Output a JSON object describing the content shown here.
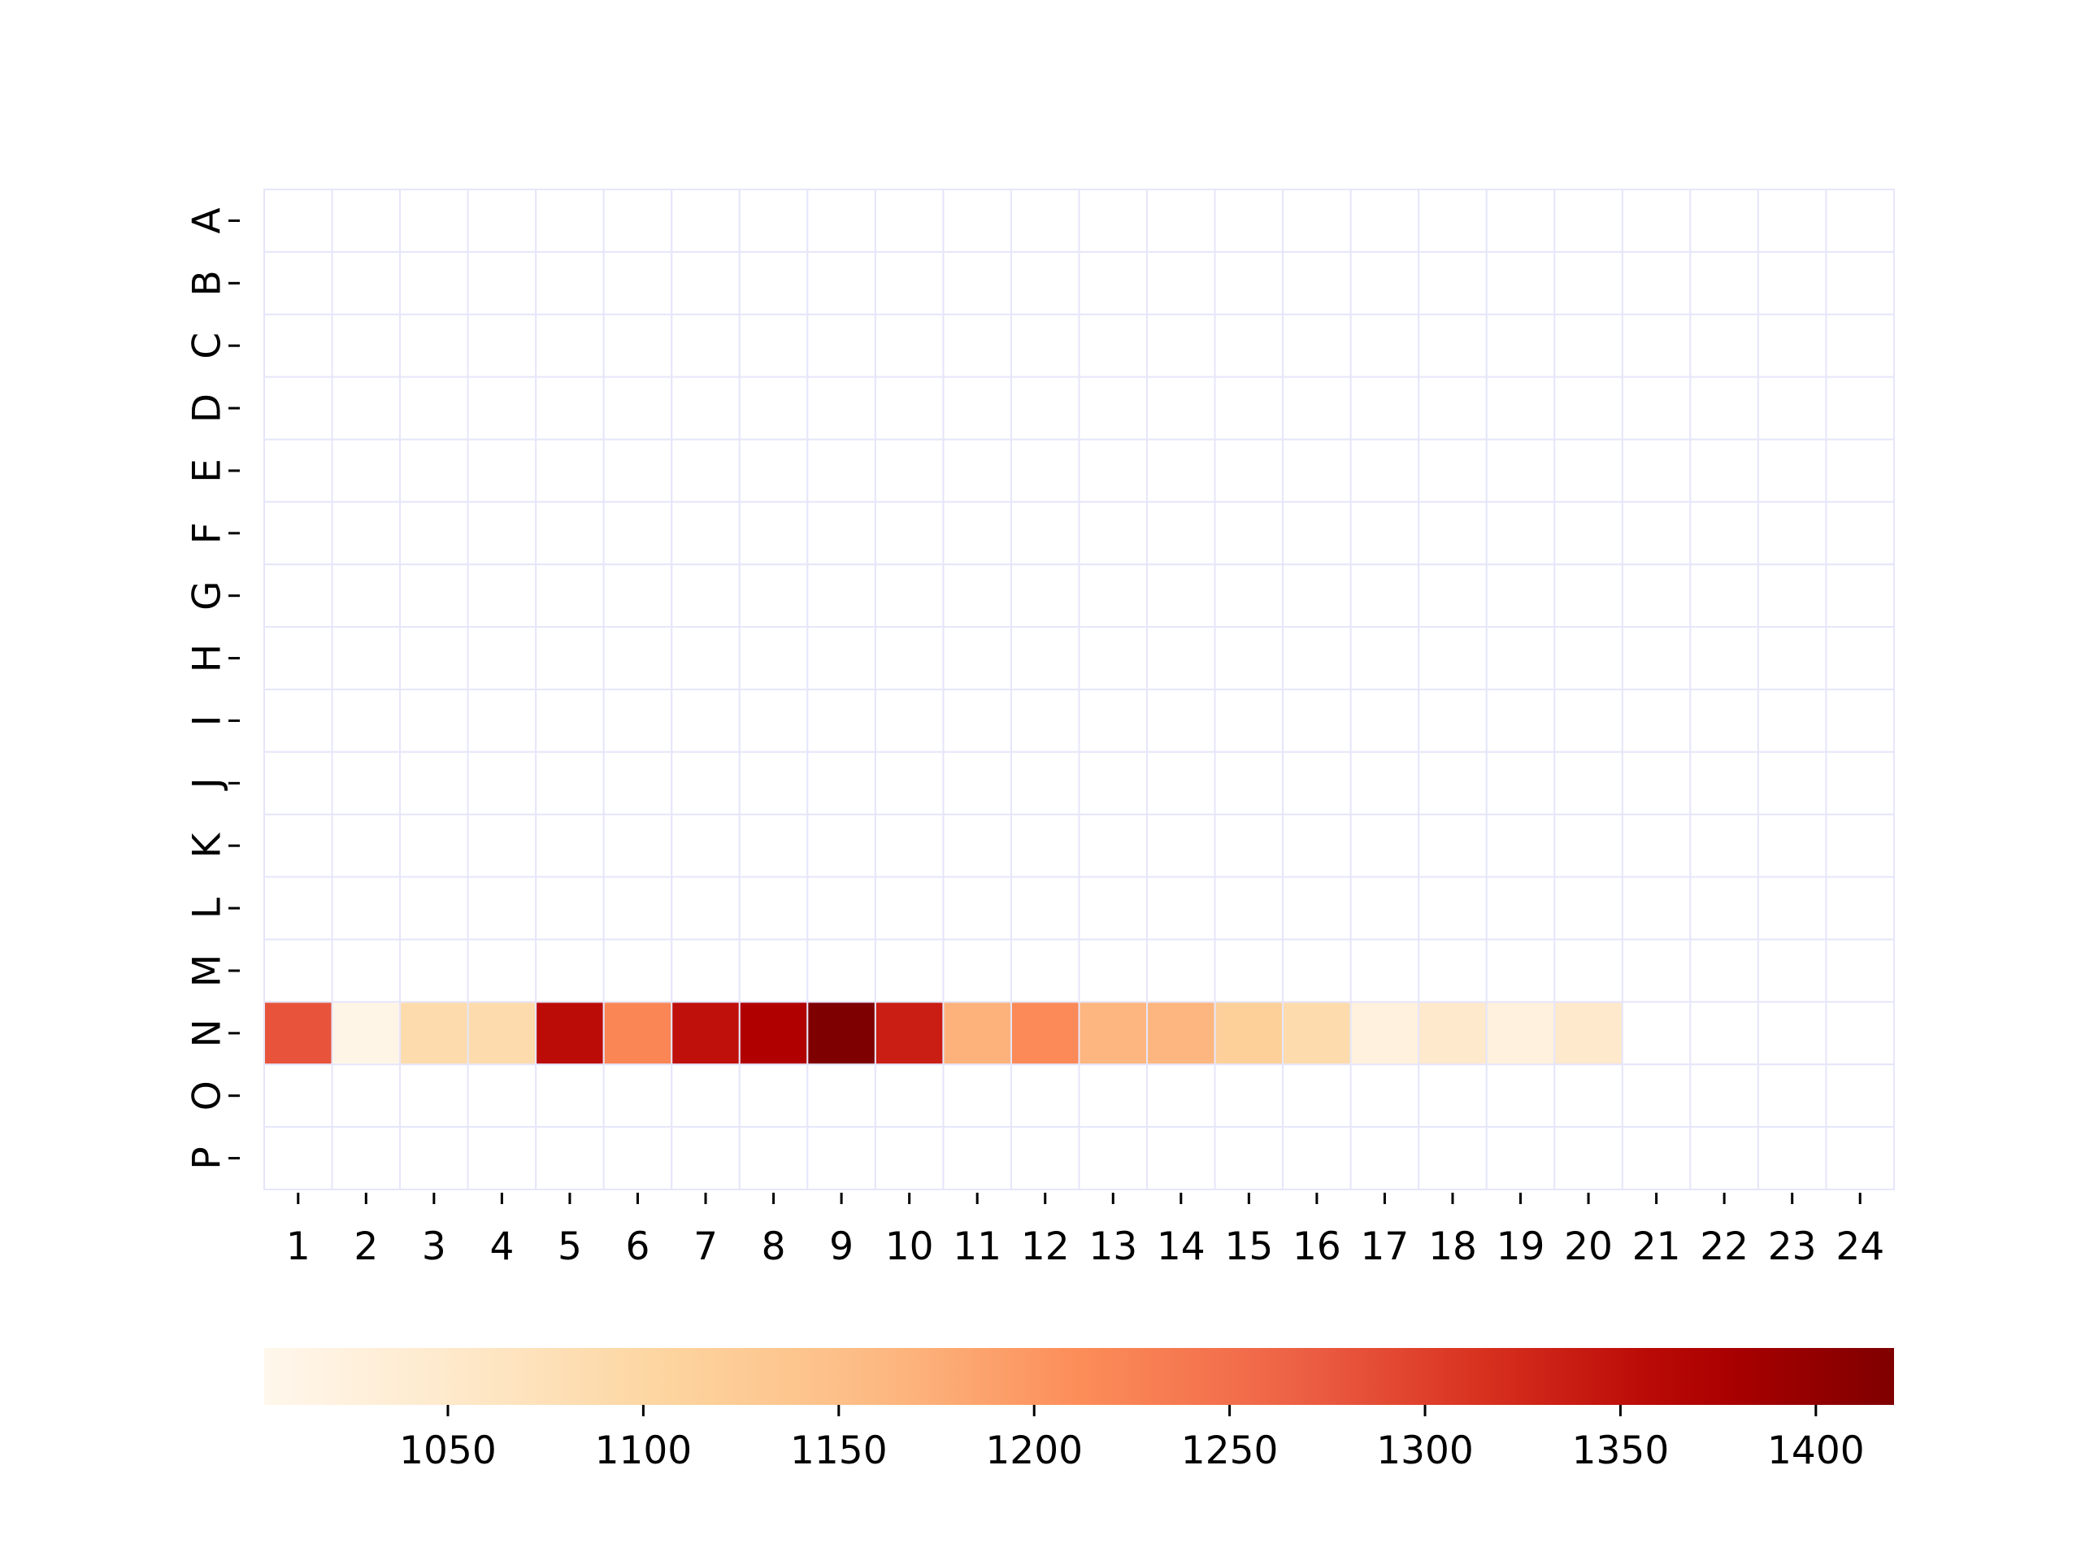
{
  "chart_data": {
    "type": "heatmap",
    "title": "",
    "xlabel": "",
    "ylabel": "",
    "columns": [
      "1",
      "2",
      "3",
      "4",
      "5",
      "6",
      "7",
      "8",
      "9",
      "10",
      "11",
      "12",
      "13",
      "14",
      "15",
      "16",
      "17",
      "18",
      "19",
      "20",
      "21",
      "22",
      "23",
      "24"
    ],
    "rows": [
      "A",
      "B",
      "C",
      "D",
      "E",
      "F",
      "G",
      "H",
      "I",
      "J",
      "K",
      "L",
      "M",
      "N",
      "O",
      "P"
    ],
    "values": {
      "N": [
        1280,
        1010,
        1090,
        1090,
        1355,
        1220,
        1350,
        1370,
        1420,
        1335,
        1170,
        1215,
        1165,
        1165,
        1115,
        1090,
        1025,
        1050,
        1025,
        1050,
        null,
        null,
        null,
        null
      ]
    },
    "colorbar": {
      "cmap": "OrRd",
      "orientation": "horizontal",
      "placement": "bottom",
      "min": 1003,
      "max": 1420,
      "ticks": [
        1050,
        1100,
        1150,
        1200,
        1250,
        1300,
        1350,
        1400
      ]
    },
    "grid": true,
    "grid_color": "#e6e6fa",
    "empty_color": "#ffffff"
  }
}
